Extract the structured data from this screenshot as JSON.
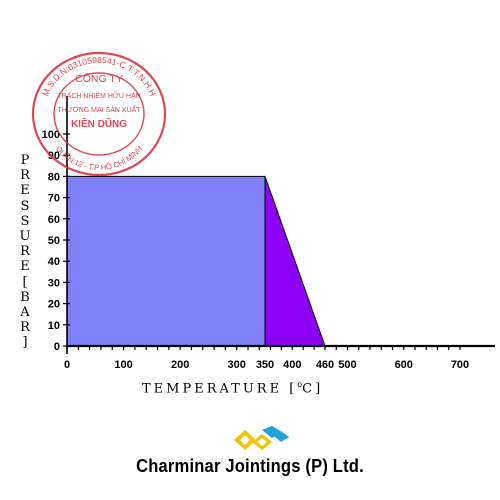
{
  "chart_data": {
    "type": "area",
    "xlabel_parts": [
      "TEMPERATURE [",
      "o",
      "C]"
    ],
    "ylabel": "PRESSURE[BAR]",
    "xlim": [
      0,
      720
    ],
    "ylim": [
      0,
      100
    ],
    "x_ticks": [
      {
        "value": 0,
        "label": "0"
      },
      {
        "value": 100,
        "label": "100"
      },
      {
        "value": 200,
        "label": "200"
      },
      {
        "value": 300,
        "label": "300"
      },
      {
        "value": 350,
        "label": "350"
      },
      {
        "value": 400,
        "label": "400"
      },
      {
        "value": 460,
        "label": "460"
      },
      {
        "value": 500,
        "label": "500"
      },
      {
        "value": 600,
        "label": "600"
      },
      {
        "value": 700,
        "label": "700"
      }
    ],
    "y_ticks": [
      0,
      10,
      20,
      30,
      40,
      50,
      60,
      70,
      80,
      90,
      100
    ],
    "regions": [
      {
        "name": "rectangle",
        "color": "#8080f8",
        "points": [
          [
            0,
            0
          ],
          [
            0,
            80
          ],
          [
            350,
            80
          ],
          [
            350,
            0
          ]
        ]
      },
      {
        "name": "triangle",
        "color": "#8c00f5",
        "points": [
          [
            350,
            0
          ],
          [
            350,
            80
          ],
          [
            460,
            0
          ]
        ]
      }
    ],
    "grid": false,
    "legend": "none"
  },
  "stamp": {
    "outer_text": "M.S.D.N:0310598541-C.T.T.N.H.H",
    "bottom_text": "QUẬN 12 - T.P HỒ CHÍ MINH",
    "line1": "CÔNG TY",
    "line2": "TRÁCH NHIỆM HỮU HẠN",
    "line3": "THƯƠNG MẠI SẢN XUẤT",
    "line4": "KIÊN DŨNG",
    "color": "#d9313c"
  },
  "logo": {
    "colors": [
      "#f2c300",
      "#1fa2d6"
    ]
  },
  "company": {
    "name": "Charminar Jointings (P) Ltd."
  }
}
